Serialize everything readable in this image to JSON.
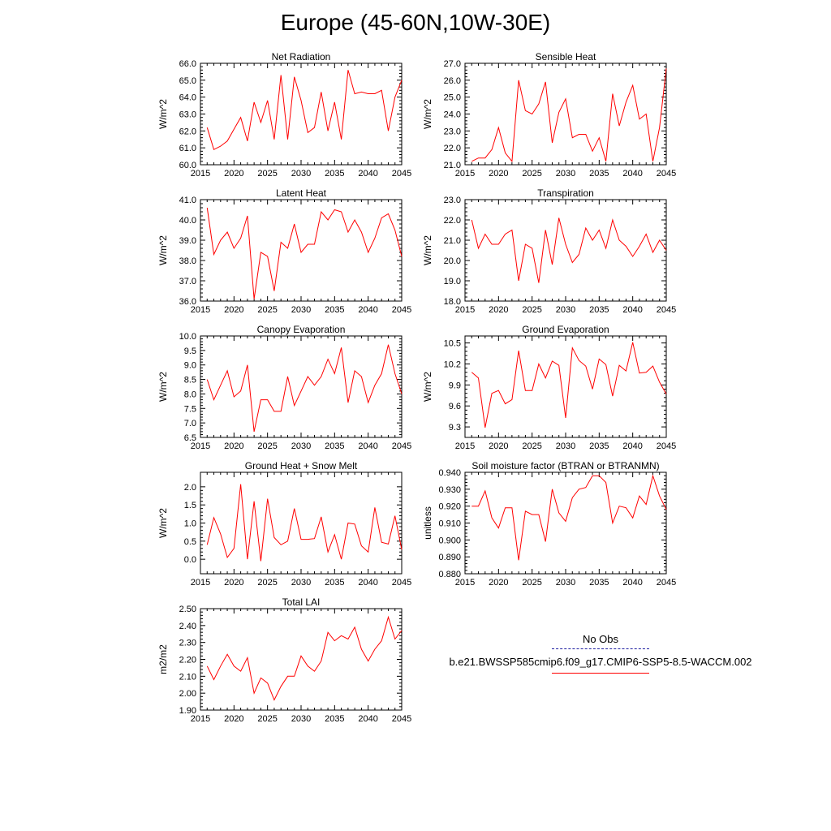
{
  "title": "Europe (45-60N,10W-30E)",
  "legend": {
    "obs_label": "No Obs",
    "obs_color": "#1d1da0",
    "model_label": "b.e21.BWSSP585cmip6.f09_g17.CMIP6-SSP5-8.5-WACCM.002",
    "model_color": "#ff0000"
  },
  "chart_data": [
    {
      "type": "line",
      "title": "Net Radiation",
      "ylabel": "W/m^2",
      "xlim": [
        2015,
        2045
      ],
      "ylim": [
        60.0,
        66.0
      ],
      "xticks": [
        2015,
        2020,
        2025,
        2030,
        2035,
        2040,
        2045
      ],
      "yticks": [
        "60.0",
        "61.0",
        "62.0",
        "63.0",
        "64.0",
        "65.0",
        "66.0"
      ],
      "x": [
        2016,
        2017,
        2018,
        2019,
        2020,
        2021,
        2022,
        2023,
        2024,
        2025,
        2026,
        2027,
        2028,
        2029,
        2030,
        2031,
        2032,
        2033,
        2034,
        2035,
        2036,
        2037,
        2038,
        2039,
        2040,
        2041,
        2042,
        2043,
        2044,
        2045
      ],
      "values": [
        62.2,
        60.9,
        61.1,
        61.4,
        62.1,
        62.8,
        61.4,
        63.7,
        62.5,
        63.8,
        61.5,
        65.3,
        61.5,
        65.2,
        63.8,
        61.9,
        62.2,
        64.3,
        62.0,
        63.7,
        61.5,
        65.6,
        64.2,
        64.3,
        64.2,
        64.2,
        64.4,
        62.0,
        64.0,
        65.0
      ]
    },
    {
      "type": "line",
      "title": "Sensible Heat",
      "ylabel": "W/m^2",
      "xlim": [
        2015,
        2045
      ],
      "ylim": [
        21.0,
        27.0
      ],
      "xticks": [
        2015,
        2020,
        2025,
        2030,
        2035,
        2040,
        2045
      ],
      "yticks": [
        "21.0",
        "22.0",
        "23.0",
        "24.0",
        "25.0",
        "26.0",
        "27.0"
      ],
      "x": [
        2016,
        2017,
        2018,
        2019,
        2020,
        2021,
        2022,
        2023,
        2024,
        2025,
        2026,
        2027,
        2028,
        2029,
        2030,
        2031,
        2032,
        2033,
        2034,
        2035,
        2036,
        2037,
        2038,
        2039,
        2040,
        2041,
        2042,
        2043,
        2044,
        2045
      ],
      "values": [
        21.2,
        21.4,
        21.4,
        21.9,
        23.2,
        21.7,
        21.2,
        26.0,
        24.2,
        24.0,
        24.6,
        25.9,
        22.3,
        24.1,
        24.9,
        22.6,
        22.8,
        22.8,
        21.8,
        22.6,
        21.2,
        25.2,
        23.3,
        24.7,
        25.7,
        23.7,
        24.0,
        21.2,
        23.2,
        26.7
      ]
    },
    {
      "type": "line",
      "title": "Latent Heat",
      "ylabel": "W/m^2",
      "xlim": [
        2015,
        2045
      ],
      "ylim": [
        36.0,
        41.0
      ],
      "xticks": [
        2015,
        2020,
        2025,
        2030,
        2035,
        2040,
        2045
      ],
      "yticks": [
        "36.0",
        "37.0",
        "38.0",
        "39.0",
        "40.0",
        "41.0"
      ],
      "x": [
        2016,
        2017,
        2018,
        2019,
        2020,
        2021,
        2022,
        2023,
        2024,
        2025,
        2026,
        2027,
        2028,
        2029,
        2030,
        2031,
        2032,
        2033,
        2034,
        2035,
        2036,
        2037,
        2038,
        2039,
        2040,
        2041,
        2042,
        2043,
        2044,
        2045
      ],
      "values": [
        40.6,
        38.3,
        39.0,
        39.4,
        38.6,
        39.1,
        40.2,
        36.1,
        38.4,
        38.2,
        36.5,
        38.9,
        38.6,
        39.8,
        38.4,
        38.8,
        38.8,
        40.4,
        40.0,
        40.5,
        40.4,
        39.4,
        40.0,
        39.4,
        38.4,
        39.1,
        40.1,
        40.3,
        39.5,
        38.2
      ]
    },
    {
      "type": "line",
      "title": "Transpiration",
      "ylabel": "W/m^2",
      "xlim": [
        2015,
        2045
      ],
      "ylim": [
        18.0,
        23.0
      ],
      "xticks": [
        2015,
        2020,
        2025,
        2030,
        2035,
        2040,
        2045
      ],
      "yticks": [
        "18.0",
        "19.0",
        "20.0",
        "21.0",
        "22.0",
        "23.0"
      ],
      "x": [
        2016,
        2017,
        2018,
        2019,
        2020,
        2021,
        2022,
        2023,
        2024,
        2025,
        2026,
        2027,
        2028,
        2029,
        2030,
        2031,
        2032,
        2033,
        2034,
        2035,
        2036,
        2037,
        2038,
        2039,
        2040,
        2041,
        2042,
        2043,
        2044,
        2045
      ],
      "values": [
        22.0,
        20.6,
        21.3,
        20.8,
        20.8,
        21.3,
        21.5,
        19.0,
        20.8,
        20.6,
        18.9,
        21.5,
        19.8,
        22.1,
        20.8,
        19.9,
        20.3,
        21.6,
        21.0,
        21.5,
        20.6,
        22.0,
        21.0,
        20.7,
        20.2,
        20.7,
        21.3,
        20.4,
        21.0,
        20.5
      ]
    },
    {
      "type": "line",
      "title": "Canopy Evaporation",
      "ylabel": "W/m^2",
      "xlim": [
        2015,
        2045
      ],
      "ylim": [
        6.5,
        10.0
      ],
      "xticks": [
        2015,
        2020,
        2025,
        2030,
        2035,
        2040,
        2045
      ],
      "yticks": [
        "6.5",
        "7.0",
        "7.5",
        "8.0",
        "8.5",
        "9.0",
        "9.5",
        "10.0"
      ],
      "x": [
        2016,
        2017,
        2018,
        2019,
        2020,
        2021,
        2022,
        2023,
        2024,
        2025,
        2026,
        2027,
        2028,
        2029,
        2030,
        2031,
        2032,
        2033,
        2034,
        2035,
        2036,
        2037,
        2038,
        2039,
        2040,
        2041,
        2042,
        2043,
        2044,
        2045
      ],
      "values": [
        8.5,
        7.8,
        8.3,
        8.8,
        7.9,
        8.1,
        9.0,
        6.7,
        7.8,
        7.8,
        7.4,
        7.4,
        8.6,
        7.6,
        8.1,
        8.6,
        8.3,
        8.6,
        9.2,
        8.7,
        9.6,
        7.7,
        8.8,
        8.6,
        7.7,
        8.3,
        8.7,
        9.7,
        8.7,
        8.0
      ]
    },
    {
      "type": "line",
      "title": "Ground Evaporation",
      "ylabel": "W/m^2",
      "xlim": [
        2015,
        2045
      ],
      "ylim": [
        9.15,
        10.6
      ],
      "xticks": [
        2015,
        2020,
        2025,
        2030,
        2035,
        2040,
        2045
      ],
      "yticks": [
        "9.3",
        "9.6",
        "9.9",
        "10.2",
        "10.5"
      ],
      "x": [
        2016,
        2017,
        2018,
        2019,
        2020,
        2021,
        2022,
        2023,
        2024,
        2025,
        2026,
        2027,
        2028,
        2029,
        2030,
        2031,
        2032,
        2033,
        2034,
        2035,
        2036,
        2037,
        2038,
        2039,
        2040,
        2041,
        2042,
        2043,
        2044,
        2045
      ],
      "values": [
        10.08,
        10.0,
        9.29,
        9.78,
        9.82,
        9.63,
        9.69,
        10.39,
        9.82,
        9.82,
        10.2,
        10.0,
        10.24,
        10.18,
        9.43,
        10.43,
        10.25,
        10.17,
        9.84,
        10.27,
        10.19,
        9.74,
        10.18,
        10.1,
        10.51,
        10.07,
        10.08,
        10.17,
        9.94,
        9.77
      ]
    },
    {
      "type": "line",
      "title": "Ground Heat + Snow Melt",
      "ylabel": "W/m^2",
      "xlim": [
        2015,
        2045
      ],
      "ylim": [
        -0.4,
        2.4
      ],
      "xticks": [
        2015,
        2020,
        2025,
        2030,
        2035,
        2040,
        2045
      ],
      "yticks": [
        "0.0",
        "0.5",
        "1.0",
        "1.5",
        "2.0"
      ],
      "ytick_values": [
        0.0,
        0.5,
        1.0,
        1.5,
        2.0
      ],
      "x": [
        2016,
        2017,
        2018,
        2019,
        2020,
        2021,
        2022,
        2023,
        2024,
        2025,
        2026,
        2027,
        2028,
        2029,
        2030,
        2031,
        2032,
        2033,
        2034,
        2035,
        2036,
        2037,
        2038,
        2039,
        2040,
        2041,
        2042,
        2043,
        2044,
        2045
      ],
      "values": [
        0.4,
        1.15,
        0.7,
        0.05,
        0.3,
        2.07,
        0.0,
        1.6,
        -0.05,
        1.67,
        0.6,
        0.4,
        0.5,
        1.4,
        0.55,
        0.55,
        0.57,
        1.17,
        0.2,
        0.68,
        0.0,
        1.0,
        0.97,
        0.37,
        0.2,
        1.43,
        0.47,
        0.42,
        1.2,
        0.27
      ]
    },
    {
      "type": "line",
      "title": "Soil moisture factor (BTRAN or BTRANMN)",
      "ylabel": "unitless",
      "xlim": [
        2015,
        2045
      ],
      "ylim": [
        0.88,
        0.94
      ],
      "xticks": [
        2015,
        2020,
        2025,
        2030,
        2035,
        2040,
        2045
      ],
      "yticks": [
        "0.880",
        "0.890",
        "0.900",
        "0.910",
        "0.920",
        "0.930",
        "0.940"
      ],
      "x": [
        2016,
        2017,
        2018,
        2019,
        2020,
        2021,
        2022,
        2023,
        2024,
        2025,
        2026,
        2027,
        2028,
        2029,
        2030,
        2031,
        2032,
        2033,
        2034,
        2035,
        2036,
        2037,
        2038,
        2039,
        2040,
        2041,
        2042,
        2043,
        2044,
        2045
      ],
      "values": [
        0.92,
        0.92,
        0.929,
        0.913,
        0.907,
        0.919,
        0.919,
        0.888,
        0.917,
        0.915,
        0.915,
        0.899,
        0.93,
        0.916,
        0.911,
        0.925,
        0.93,
        0.931,
        0.938,
        0.938,
        0.934,
        0.91,
        0.92,
        0.919,
        0.913,
        0.926,
        0.921,
        0.938,
        0.926,
        0.918
      ]
    },
    {
      "type": "line",
      "title": "Total LAI",
      "ylabel": "m2/m2",
      "xlim": [
        2015,
        2045
      ],
      "ylim": [
        1.9,
        2.5
      ],
      "xticks": [
        2015,
        2020,
        2025,
        2030,
        2035,
        2040,
        2045
      ],
      "yticks": [
        "1.90",
        "2.00",
        "2.10",
        "2.20",
        "2.30",
        "2.40",
        "2.50"
      ],
      "x": [
        2016,
        2017,
        2018,
        2019,
        2020,
        2021,
        2022,
        2023,
        2024,
        2025,
        2026,
        2027,
        2028,
        2029,
        2030,
        2031,
        2032,
        2033,
        2034,
        2035,
        2036,
        2037,
        2038,
        2039,
        2040,
        2041,
        2042,
        2043,
        2044,
        2045
      ],
      "values": [
        2.16,
        2.08,
        2.16,
        2.23,
        2.16,
        2.13,
        2.21,
        2.0,
        2.09,
        2.06,
        1.96,
        2.04,
        2.1,
        2.1,
        2.22,
        2.16,
        2.13,
        2.19,
        2.36,
        2.31,
        2.34,
        2.32,
        2.39,
        2.26,
        2.19,
        2.26,
        2.31,
        2.45,
        2.32,
        2.37
      ]
    }
  ]
}
